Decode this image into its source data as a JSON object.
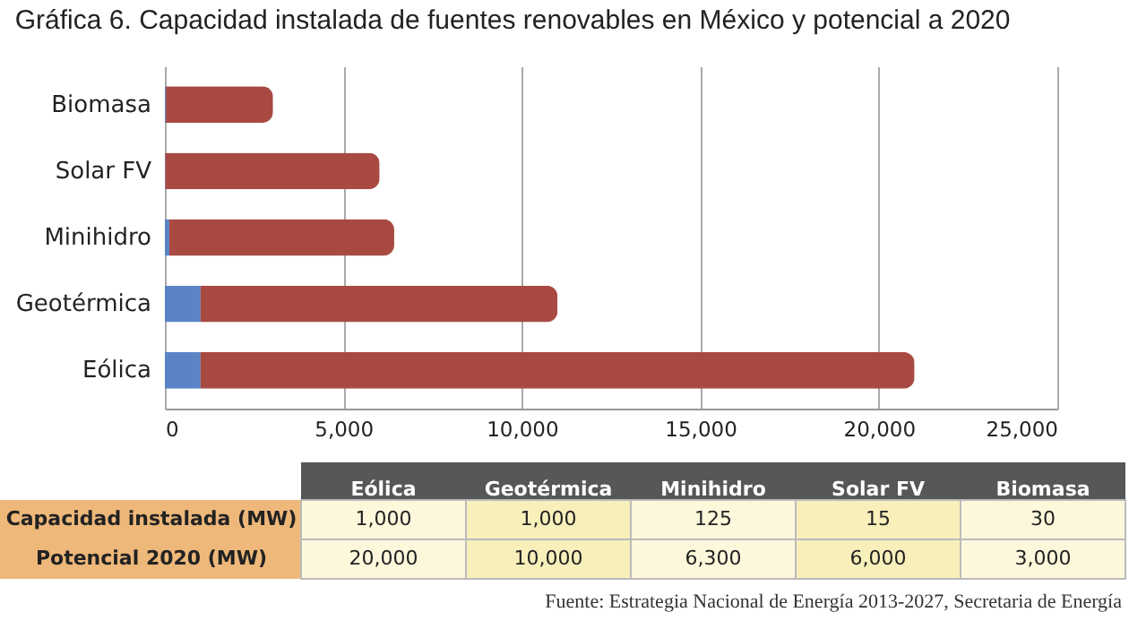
{
  "chart_data": [
    {
      "type": "bar",
      "orientation": "horizontal",
      "stacked": true,
      "title": "Gráfica 6. Capacidad instalada de fuentes renovables en México y potencial a 2020",
      "categories": [
        "Biomasa",
        "Solar FV",
        "Minihidro",
        "Geotérmica",
        "Eólica"
      ],
      "series": [
        {
          "color": "#5b84c6",
          "values": [
            30,
            15,
            125,
            1000,
            1000
          ]
        },
        {
          "color": "#a84a42",
          "values": [
            3000,
            6000,
            6300,
            10000,
            20000
          ]
        }
      ],
      "xlim": [
        0,
        25000
      ],
      "xticks": [
        {
          "value": 0,
          "label": "0"
        },
        {
          "value": 5000,
          "label": "5,000"
        },
        {
          "value": 10000,
          "label": "10,000"
        },
        {
          "value": 15000,
          "label": "15,000"
        },
        {
          "value": 20000,
          "label": "20,000"
        },
        {
          "value": 25000,
          "label": "25,000"
        }
      ],
      "grid": "x",
      "annotations": [
        "Fuente: Estrategia Nacional de Energía 2013-2027, Secretaria de Energía"
      ]
    },
    {
      "type": "heatmap",
      "categories": [
        "Eólica",
        "Geotérmica",
        "Minihidro",
        "Solar FV",
        "Biomasa"
      ],
      "y_categories": [
        "Capacidad instalada (MW)",
        "Potencial 2020 (MW)"
      ],
      "cells": [
        [
          1000,
          1000,
          125,
          15,
          30
        ],
        [
          20000,
          10000,
          6300,
          6000,
          3000
        ]
      ],
      "cell_labels": [
        [
          "1,000",
          "1,000",
          "125",
          "15",
          "30"
        ],
        [
          "20,000",
          "10,000",
          "6,300",
          "6,000",
          "3,000"
        ]
      ]
    }
  ]
}
